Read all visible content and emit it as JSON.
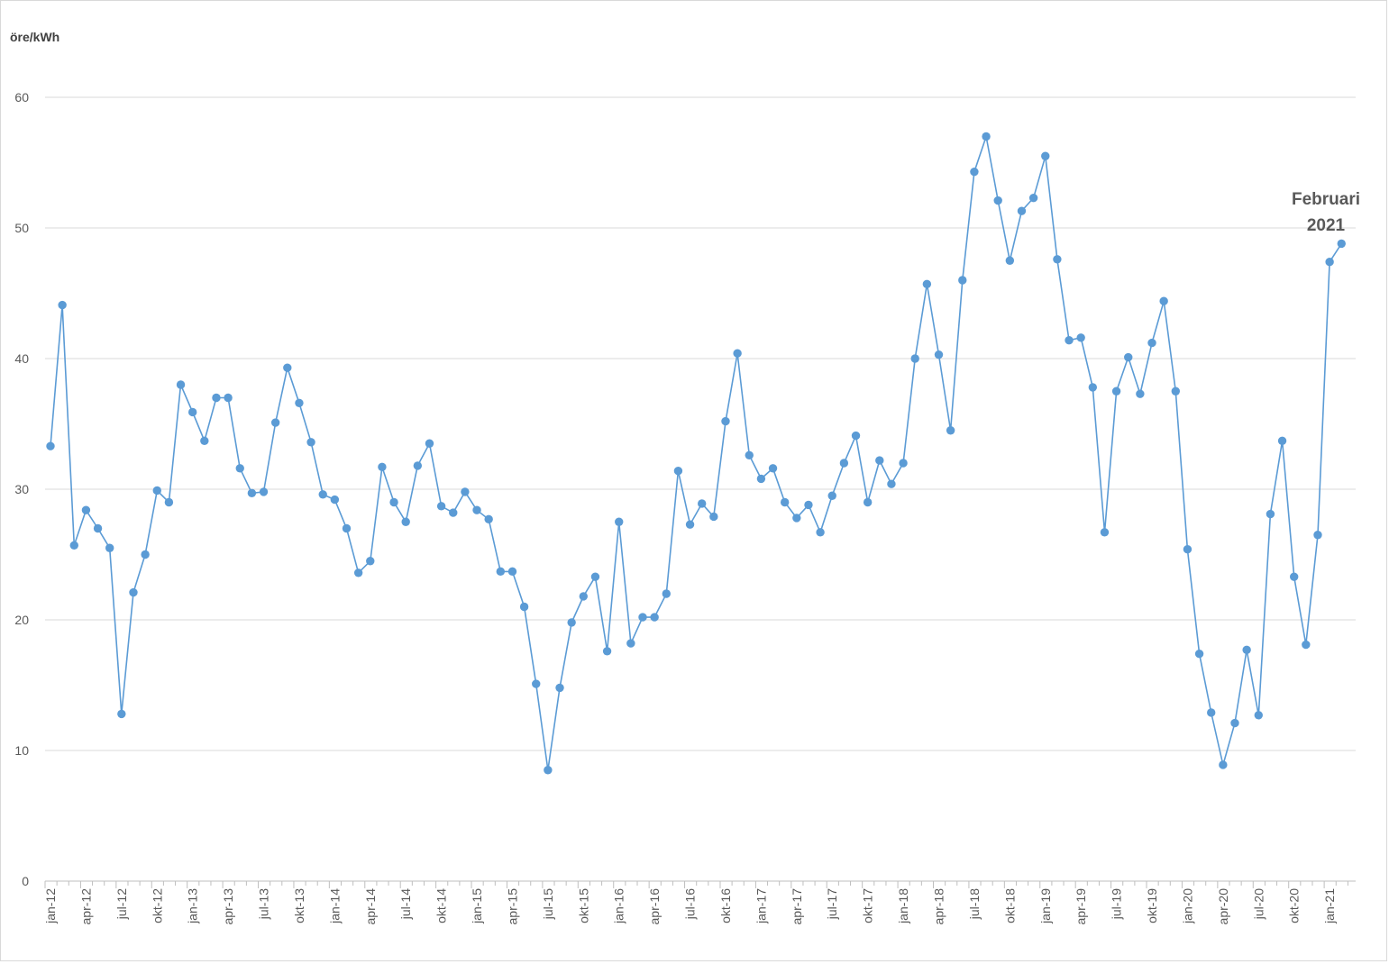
{
  "chart_data": {
    "type": "line",
    "ylabel": "öre/kWh",
    "ylim": [
      0,
      60
    ],
    "yticks": [
      0,
      10,
      20,
      30,
      40,
      50,
      60
    ],
    "grid": true,
    "marker": "circle",
    "color": "#5b9bd5",
    "x_tick_labels": [
      "jan-12",
      "apr-12",
      "jul-12",
      "okt-12",
      "jan-13",
      "apr-13",
      "jul-13",
      "okt-13",
      "jan-14",
      "apr-14",
      "jul-14",
      "okt-14",
      "jan-15",
      "apr-15",
      "jul-15",
      "okt-15",
      "jan-16",
      "apr-16",
      "jul-16",
      "okt-16",
      "jan-17",
      "apr-17",
      "jul-17",
      "okt-17",
      "jan-18",
      "apr-18",
      "jul-18",
      "okt-18",
      "jan-19",
      "apr-19",
      "jul-19",
      "okt-19",
      "jan-20",
      "apr-20",
      "jul-20",
      "okt-20",
      "jan-21"
    ],
    "x_range": [
      "2012-01",
      "2021-02"
    ],
    "values": [
      33.3,
      44.1,
      25.7,
      28.4,
      27.0,
      25.5,
      12.8,
      22.1,
      25.0,
      29.9,
      29.0,
      38.0,
      35.9,
      33.7,
      37.0,
      37.0,
      31.6,
      29.7,
      29.8,
      35.1,
      39.3,
      36.6,
      33.6,
      29.6,
      29.2,
      27.0,
      23.6,
      24.5,
      31.7,
      29.0,
      27.5,
      31.8,
      33.5,
      28.7,
      28.2,
      29.8,
      28.4,
      27.7,
      23.7,
      23.7,
      21.0,
      15.1,
      8.5,
      14.8,
      19.8,
      21.8,
      23.3,
      17.6,
      27.5,
      18.2,
      20.2,
      20.2,
      22.0,
      31.4,
      27.3,
      28.9,
      27.9,
      35.2,
      40.4,
      32.6,
      30.8,
      31.6,
      29.0,
      27.8,
      28.8,
      26.7,
      29.5,
      32.0,
      34.1,
      29.0,
      32.2,
      30.4,
      32.0,
      40.0,
      45.7,
      40.3,
      34.5,
      46.0,
      54.3,
      57.0,
      52.1,
      47.5,
      51.3,
      52.3,
      55.5,
      47.6,
      41.4,
      41.6,
      37.8,
      26.7,
      37.5,
      40.1,
      37.3,
      41.2,
      44.4,
      37.5,
      25.4,
      17.4,
      12.9,
      8.9,
      12.1,
      17.7,
      12.7,
      28.1,
      33.7,
      23.3,
      18.1,
      26.5,
      47.4,
      48.8
    ],
    "annotation": {
      "line1": "Februari",
      "line2": "2021"
    }
  }
}
